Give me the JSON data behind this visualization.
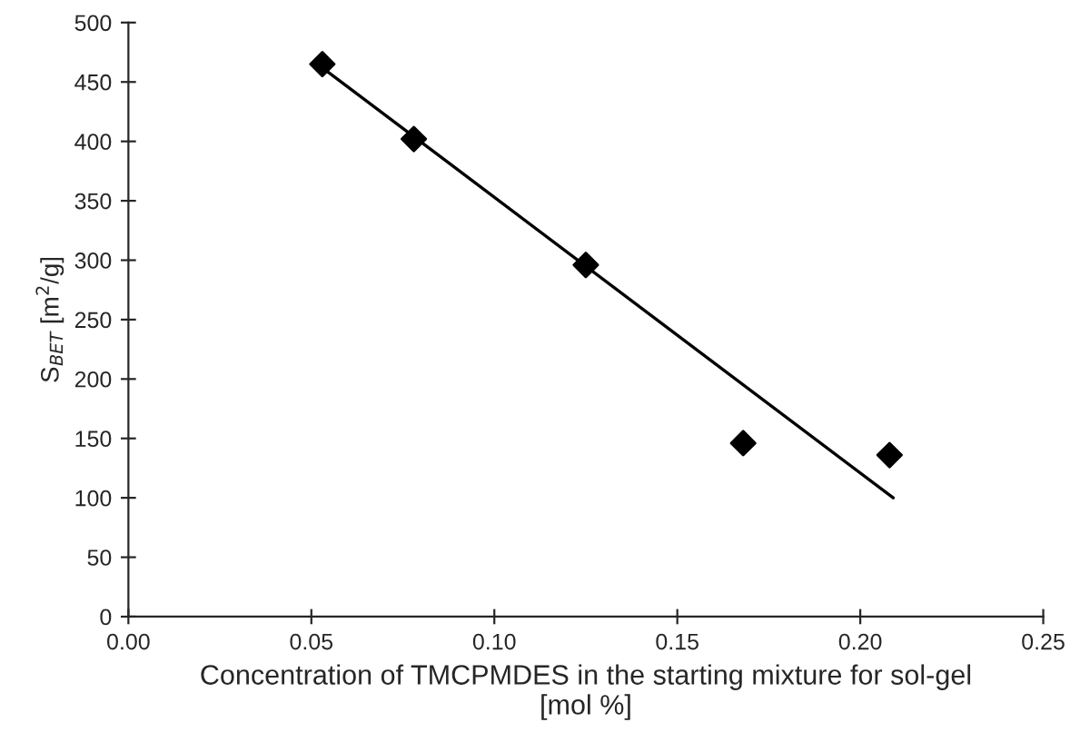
{
  "chart_data": {
    "type": "scatter",
    "xlabel": "Concentration of TMCPMDES in the starting mixture for sol-gel\n[mol %]",
    "ylabel": "S$_{BET}$ [m$^{2}$/g]",
    "series": [
      {
        "color": "#000000",
        "marker": "diamond",
        "x": [
          0.053,
          0.078,
          0.125,
          0.168,
          0.208
        ],
        "values": [
          465,
          402,
          296,
          146,
          136
        ]
      },
      {
        "type": "line",
        "color": "#000000",
        "marker": "none",
        "line_style": "solid",
        "x": [
          0.053,
          0.209
        ],
        "values": [
          462,
          100
        ]
      }
    ],
    "xlim": [
      0,
      0.25
    ],
    "ylim": [
      0,
      500
    ],
    "xticks": [
      {
        "value": 0,
        "label": "0.00"
      },
      {
        "value": 0.05,
        "label": "0.05"
      },
      {
        "value": 0.1,
        "label": "0.10"
      },
      {
        "value": 0.15,
        "label": "0.15"
      },
      {
        "value": 0.2,
        "label": "0.20"
      },
      {
        "value": 0.25,
        "label": "0.25"
      }
    ],
    "yticks": [
      0,
      50,
      100,
      150,
      200,
      250,
      300,
      350,
      400,
      450,
      500
    ],
    "grid": false,
    "legend": false
  }
}
